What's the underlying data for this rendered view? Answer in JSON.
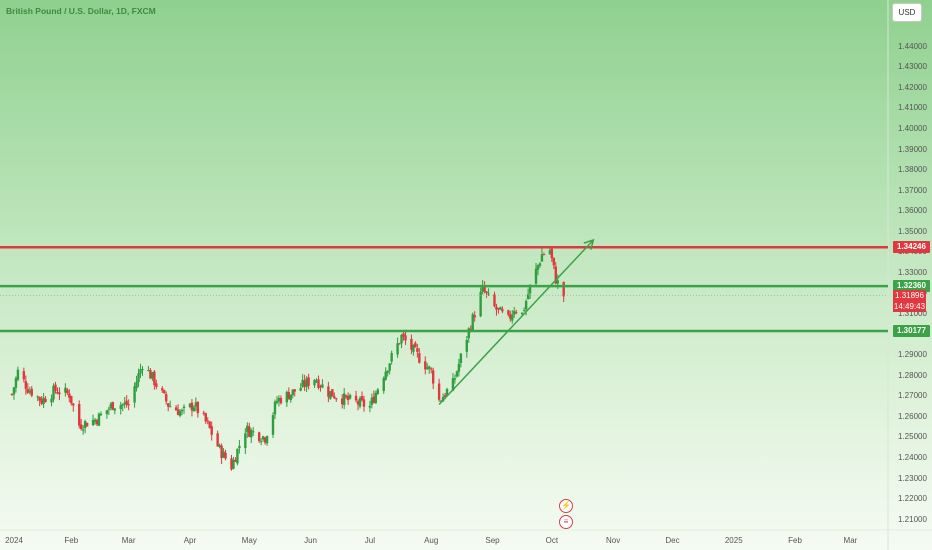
{
  "header": {
    "symbol_title": "British Pound / U.S. Dollar, 1D, FXCM"
  },
  "currency_button": {
    "label": "USD"
  },
  "colors": {
    "up": "#2e9e3e",
    "down": "#e0383e",
    "resistance": "#e0383e",
    "support": "#3aa346",
    "trend": "#3aa346",
    "price_tag_bg": "#e0383e"
  },
  "icons": [
    "lightning-icon",
    "economic-events-icon"
  ],
  "chart_data": {
    "type": "candlestick",
    "title": "British Pound / U.S. Dollar, 1D, FXCM",
    "ylim": [
      1.205,
      1.452
    ],
    "xlim": [
      "2024-01-01",
      "2025-03-20"
    ],
    "y_ticks": [
      "1.44000",
      "1.43000",
      "1.42000",
      "1.41000",
      "1.40000",
      "1.39000",
      "1.38000",
      "1.37000",
      "1.36000",
      "1.35000",
      "1.34000",
      "1.33000",
      "1.32000",
      "1.31000",
      "1.30000",
      "1.29000",
      "1.28000",
      "1.27000",
      "1.26000",
      "1.25000",
      "1.24000",
      "1.23000",
      "1.22000",
      "1.21000"
    ],
    "x_ticks": [
      {
        "label": "2024",
        "date": "2024-01-01"
      },
      {
        "label": "Feb",
        "date": "2024-02-01"
      },
      {
        "label": "Mar",
        "date": "2024-03-01"
      },
      {
        "label": "Apr",
        "date": "2024-04-01"
      },
      {
        "label": "May",
        "date": "2024-05-01"
      },
      {
        "label": "Jun",
        "date": "2024-06-01"
      },
      {
        "label": "Jul",
        "date": "2024-07-01"
      },
      {
        "label": "Aug",
        "date": "2024-08-01"
      },
      {
        "label": "Sep",
        "date": "2024-09-01"
      },
      {
        "label": "Oct",
        "date": "2024-10-01"
      },
      {
        "label": "Nov",
        "date": "2024-11-01"
      },
      {
        "label": "Dec",
        "date": "2024-12-01"
      },
      {
        "label": "2025",
        "date": "2025-01-01"
      },
      {
        "label": "Feb",
        "date": "2025-02-01"
      },
      {
        "label": "Mar",
        "date": "2025-03-01"
      }
    ],
    "horizontal_levels": [
      {
        "value": 1.34246,
        "label": "1.34246",
        "color": "#e0383e"
      },
      {
        "value": 1.3236,
        "label": "1.32360",
        "color": "#3aa346"
      },
      {
        "value": 1.30177,
        "label": "1.30177",
        "color": "#3aa346"
      }
    ],
    "current_price": {
      "value": 1.31896,
      "label": "1.31896",
      "countdown": "14:49:43"
    },
    "trend_arrow": {
      "from": {
        "date": "2024-08-05",
        "price": 1.266
      },
      "to": {
        "date": "2024-10-22",
        "price": 1.346
      }
    },
    "close_anchors": [
      [
        "2024-01-02",
        1.271
      ],
      [
        "2024-01-05",
        1.282
      ],
      [
        "2024-01-10",
        1.274
      ],
      [
        "2024-01-17",
        1.268
      ],
      [
        "2024-01-24",
        1.273
      ],
      [
        "2024-01-31",
        1.271
      ],
      [
        "2024-02-05",
        1.256
      ],
      [
        "2024-02-14",
        1.259
      ],
      [
        "2024-02-22",
        1.266
      ],
      [
        "2024-03-01",
        1.266
      ],
      [
        "2024-03-08",
        1.286
      ],
      [
        "2024-03-13",
        1.279
      ],
      [
        "2024-03-21",
        1.266
      ],
      [
        "2024-03-28",
        1.262
      ],
      [
        "2024-04-03",
        1.266
      ],
      [
        "2024-04-10",
        1.256
      ],
      [
        "2024-04-16",
        1.244
      ],
      [
        "2024-04-22",
        1.236
      ],
      [
        "2024-04-29",
        1.254
      ],
      [
        "2024-05-09",
        1.25
      ],
      [
        "2024-05-15",
        1.268
      ],
      [
        "2024-05-23",
        1.272
      ],
      [
        "2024-06-03",
        1.279
      ],
      [
        "2024-06-10",
        1.272
      ],
      [
        "2024-06-17",
        1.269
      ],
      [
        "2024-06-24",
        1.267
      ],
      [
        "2024-07-01",
        1.265
      ],
      [
        "2024-07-08",
        1.281
      ],
      [
        "2024-07-17",
        1.299
      ],
      [
        "2024-07-24",
        1.291
      ],
      [
        "2024-08-01",
        1.282
      ],
      [
        "2024-08-05",
        1.268
      ],
      [
        "2024-08-12",
        1.276
      ],
      [
        "2024-08-20",
        1.302
      ],
      [
        "2024-08-27",
        1.322
      ],
      [
        "2024-09-02",
        1.313
      ],
      [
        "2024-09-09",
        1.307
      ],
      [
        "2024-09-12",
        1.313
      ],
      [
        "2024-09-16",
        1.31
      ],
      [
        "2024-09-20",
        1.323
      ],
      [
        "2024-09-26",
        1.339
      ],
      [
        "2024-09-30",
        1.341
      ],
      [
        "2024-10-03",
        1.327
      ],
      [
        "2024-10-07",
        1.319
      ]
    ]
  }
}
